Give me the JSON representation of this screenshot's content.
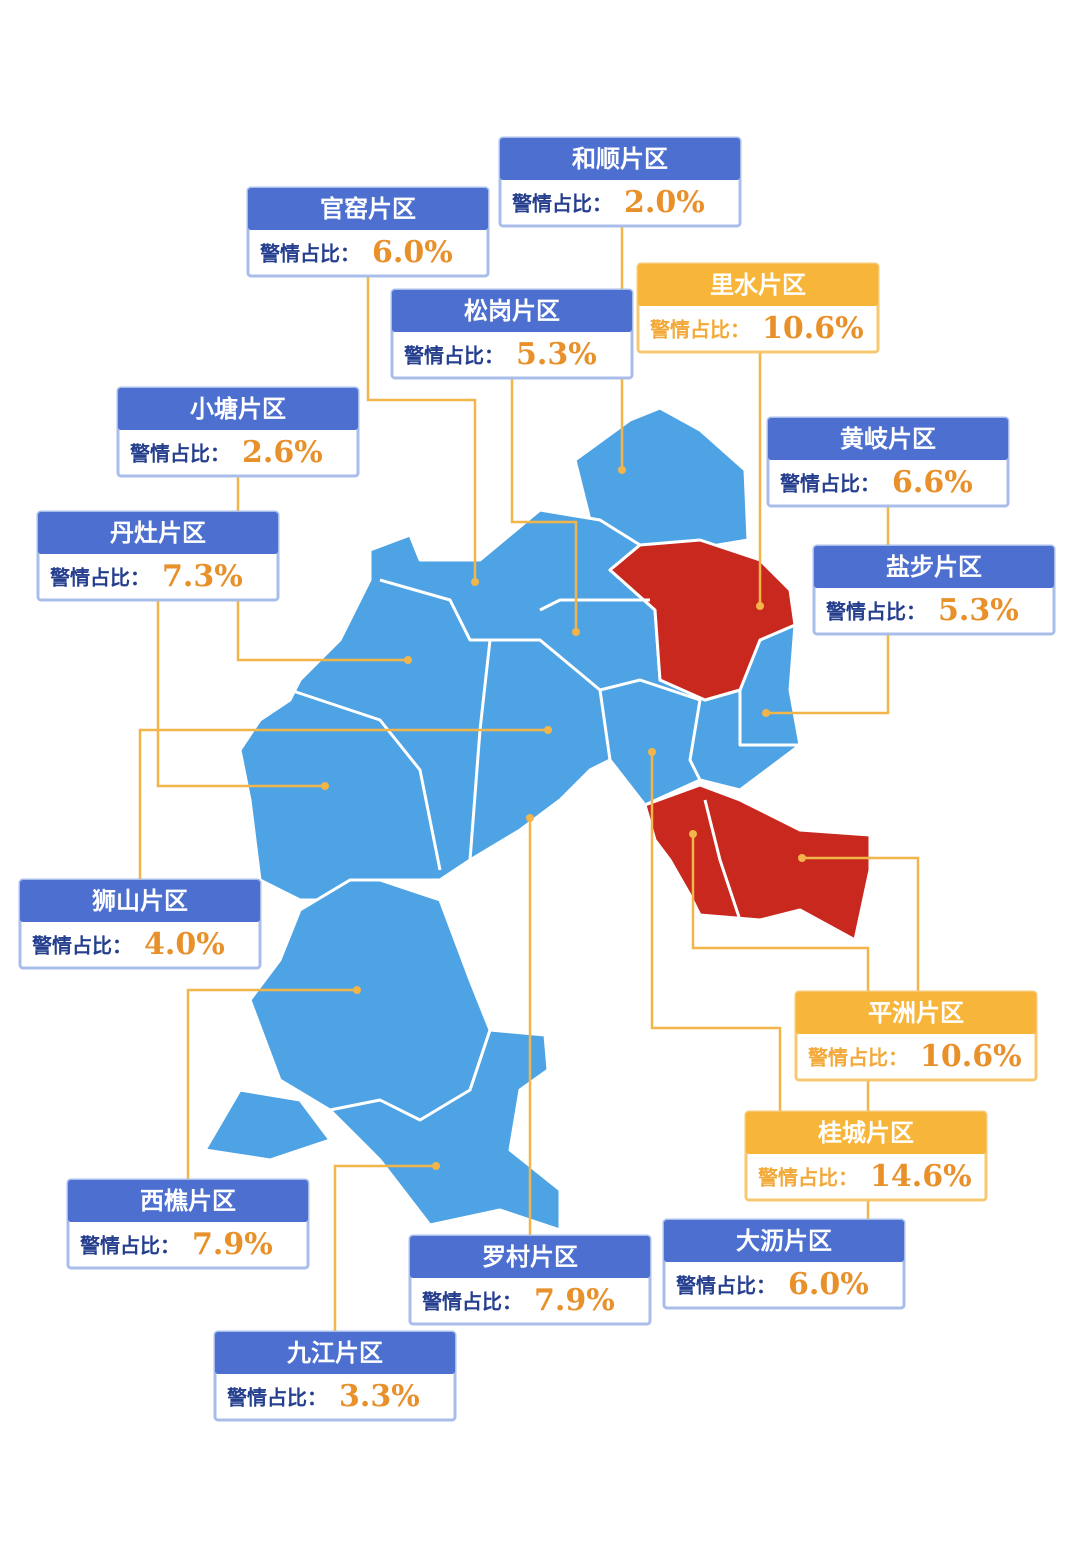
{
  "districts": [
    {
      "name": "和顺片区",
      "label": "警情占比：",
      "value": "2.0%",
      "highlight": false
    },
    {
      "name": "官窑片区",
      "label": "警情占比：",
      "value": "6.0%",
      "highlight": false
    },
    {
      "name": "松岗片区",
      "label": "警情占比：",
      "value": "5.3%",
      "highlight": false
    },
    {
      "name": "里水片区",
      "label": "警情占比：",
      "value": "10.6%",
      "highlight": true
    },
    {
      "name": "小塘片区",
      "label": "警情占比：",
      "value": "2.6%",
      "highlight": false
    },
    {
      "name": "黄岐片区",
      "label": "警情占比：",
      "value": "6.6%",
      "highlight": false
    },
    {
      "name": "丹灶片区",
      "label": "警情占比：",
      "value": "7.3%",
      "highlight": false
    },
    {
      "name": "盐步片区",
      "label": "警情占比：",
      "value": "5.3%",
      "highlight": false
    },
    {
      "name": "狮山片区",
      "label": "警情占比：",
      "value": "4.0%",
      "highlight": false
    },
    {
      "name": "平洲片区",
      "label": "警情占比：",
      "value": "10.6%",
      "highlight": true
    },
    {
      "name": "桂城片区",
      "label": "警情占比：",
      "value": "14.6%",
      "highlight": true
    },
    {
      "name": "西樵片区",
      "label": "警情占比：",
      "value": "7.9%",
      "highlight": false
    },
    {
      "name": "大沥片区",
      "label": "警情占比：",
      "value": "6.0%",
      "highlight": false
    },
    {
      "name": "罗村片区",
      "label": "警情占比：",
      "value": "7.9%",
      "highlight": false
    },
    {
      "name": "九江片区",
      "label": "警情占比：",
      "value": "3.3%",
      "highlight": false
    }
  ]
}
